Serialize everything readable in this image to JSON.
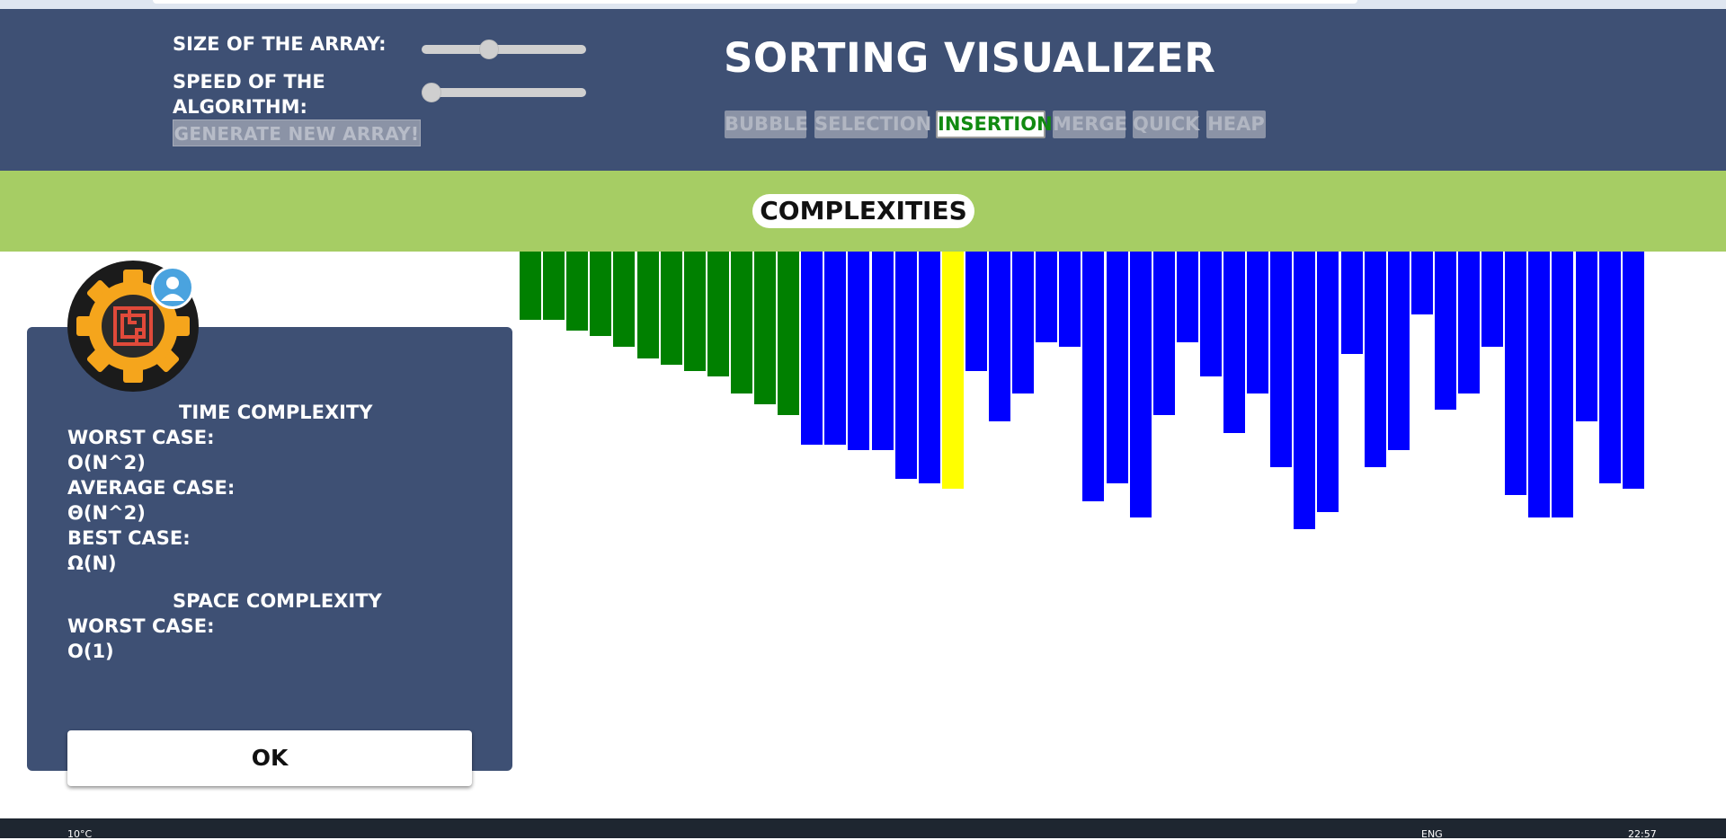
{
  "controls": {
    "size_label": "SIZE OF THE ARRAY:",
    "speed_label_line1": "SPEED OF THE",
    "speed_label_line2": "ALGORITHM:",
    "size_slider_value": 0.4,
    "speed_slider_value": 0.0,
    "generate_button": "GENERATE NEW ARRAY!"
  },
  "header": {
    "title": "SORTING VISUALIZER",
    "algorithms": [
      "BUBBLE",
      "SELECTION",
      "INSERTION",
      "MERGE",
      "QUICK",
      "HEAP"
    ],
    "active_algorithm": "INSERTION"
  },
  "complexities_banner": "COMPLEXITIES",
  "modal": {
    "time_heading": "TIME COMPLEXITY",
    "worst_label": "WORST CASE:",
    "worst_value": "O(N^2)",
    "average_label": "AVERAGE CASE:",
    "average_value": "Θ(N^2)",
    "best_label": "BEST CASE:",
    "best_value": "Ω(N)",
    "space_heading": "SPACE COMPLEXITY",
    "space_worst_label": "WORST CASE:",
    "space_worst_value": "O(1)",
    "ok_button": "OK"
  },
  "colors": {
    "header_bg": "#3e5074",
    "banner_bg": "#a6cd64",
    "sorted": "#008000",
    "unsorted": "#0000ff",
    "current": "#ffff00",
    "active_algo_text": "#118a11"
  },
  "array": {
    "values": [
      76,
      76,
      88,
      94,
      106,
      119,
      126,
      133,
      139,
      158,
      170,
      182,
      215,
      215,
      221,
      221,
      253,
      258,
      264,
      133,
      189,
      158,
      101,
      106,
      278,
      258,
      296,
      182,
      101,
      139,
      202,
      158,
      240,
      309,
      290,
      114,
      240,
      221,
      70,
      176,
      158,
      106,
      271,
      296,
      296,
      189,
      258,
      264
    ],
    "states": [
      "sorted",
      "sorted",
      "sorted",
      "sorted",
      "sorted",
      "sorted",
      "sorted",
      "sorted",
      "sorted",
      "sorted",
      "sorted",
      "sorted",
      "unsorted",
      "unsorted",
      "unsorted",
      "unsorted",
      "unsorted",
      "unsorted",
      "current",
      "unsorted",
      "unsorted",
      "unsorted",
      "unsorted",
      "unsorted",
      "unsorted",
      "unsorted",
      "unsorted",
      "unsorted",
      "unsorted",
      "unsorted",
      "unsorted",
      "unsorted",
      "unsorted",
      "unsorted",
      "unsorted",
      "unsorted",
      "unsorted",
      "unsorted",
      "unsorted",
      "unsorted",
      "unsorted",
      "unsorted",
      "unsorted",
      "unsorted",
      "unsorted",
      "unsorted",
      "unsorted",
      "unsorted"
    ]
  },
  "taskbar": {
    "weather": "10°C",
    "lang": "ENG",
    "time": "22:57"
  }
}
